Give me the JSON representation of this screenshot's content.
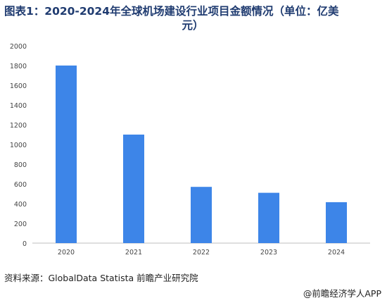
{
  "title": {
    "line1": "图表1：2020-2024年全球机场建设行业项目金额情况（单位：亿美",
    "line2": "元）"
  },
  "source": "资料来源：GlobalData Statista 前瞻产业研究院",
  "footer": "@前瞻经济学人APP",
  "colors": {
    "bar": "#3d85e8",
    "axis": "#bfbfbf",
    "tick": "#444444"
  },
  "chart_data": {
    "type": "bar",
    "categories": [
      "2020",
      "2021",
      "2022",
      "2023",
      "2024"
    ],
    "values": [
      1800,
      1100,
      570,
      510,
      415
    ],
    "ylim": [
      0,
      2000
    ],
    "yticks": [
      0,
      200,
      400,
      600,
      800,
      1000,
      1200,
      1400,
      1600,
      1800,
      2000
    ],
    "grid": false,
    "legend": "none"
  }
}
